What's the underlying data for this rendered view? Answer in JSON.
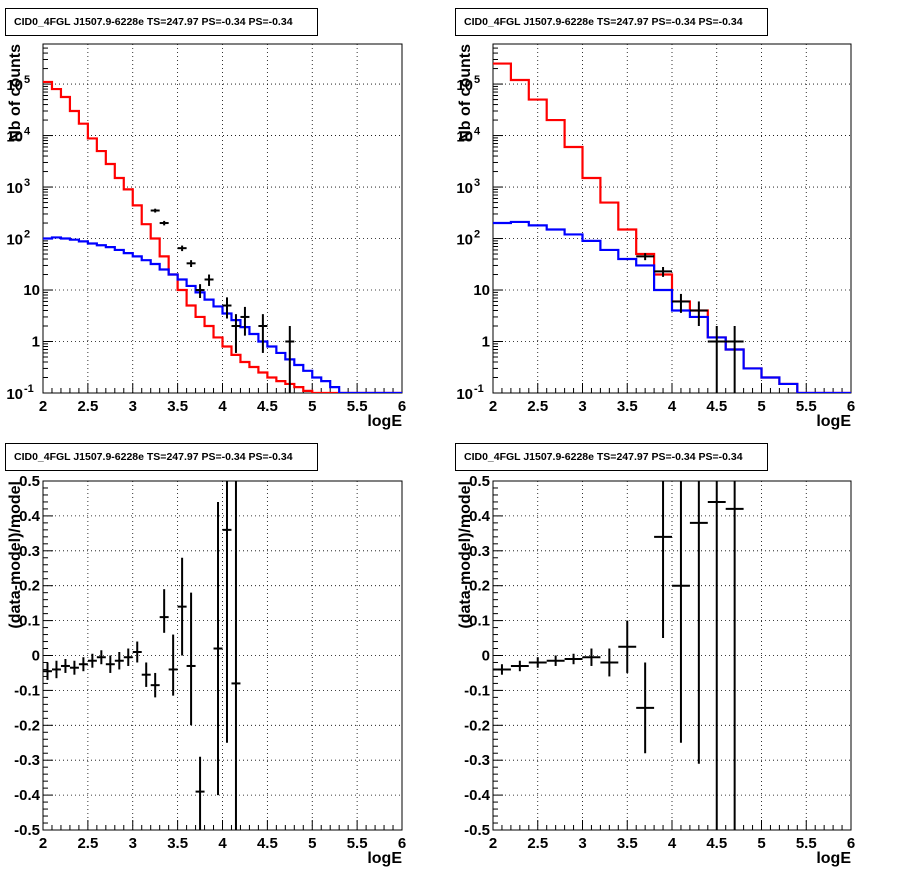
{
  "chart_data": [
    {
      "type": "line",
      "title": "CID0_4FGL J1507.9-6228e TS=247.97 PS=-0.34 PS=-0.34",
      "xlabel": "logE",
      "ylabel": "Nb of counts",
      "yscale": "log",
      "xlim": [
        2,
        6
      ],
      "ylim": [
        0.1,
        600000
      ],
      "grid": true,
      "x_ticks": [
        "2",
        "2.5",
        "3",
        "3.5",
        "4",
        "4.5",
        "5",
        "5.5",
        "6"
      ],
      "y_ticks": [
        "10^-1",
        "1",
        "10",
        "10^2",
        "10^3",
        "10^4",
        "10^5"
      ],
      "bin_edges": [
        2.0,
        2.1,
        2.2,
        2.3,
        2.4,
        2.5,
        2.6,
        2.7,
        2.8,
        2.9,
        3.0,
        3.1,
        3.2,
        3.3,
        3.4,
        3.5,
        3.6,
        3.7,
        3.8,
        3.9,
        4.0,
        4.1,
        4.2,
        4.3,
        4.4,
        4.5,
        4.6,
        4.7,
        4.8,
        4.9,
        5.0,
        5.1,
        5.2,
        5.3,
        5.4,
        5.5,
        5.6,
        5.7,
        5.8,
        5.9,
        6.0
      ],
      "series": [
        {
          "color": "#ff0000",
          "values": [
            110000,
            80000,
            56000,
            30000,
            17000,
            8800,
            5000,
            2800,
            1500,
            900,
            440,
            190,
            100,
            45,
            20,
            10,
            5,
            3,
            2,
            1.2,
            0.8,
            0.55,
            0.4,
            0.32,
            0.25,
            0.2,
            0.17,
            0.15,
            0.13,
            0.11,
            0.1,
            0.1,
            0.1,
            0.1,
            0.1,
            0.1,
            0.1,
            0.1,
            0.1,
            0.1
          ]
        },
        {
          "color": "#0000ff",
          "values": [
            100,
            105,
            100,
            95,
            88,
            80,
            74,
            68,
            60,
            52,
            45,
            38,
            32,
            25,
            20,
            16,
            12,
            9,
            6.5,
            4.8,
            3.5,
            2.6,
            1.9,
            1.4,
            1.0,
            0.8,
            0.6,
            0.45,
            0.35,
            0.27,
            0.2,
            0.17,
            0.13,
            0.1,
            0.1,
            0.1,
            0.1,
            0.1,
            0.1,
            0.1
          ]
        }
      ],
      "data_points": [
        {
          "x": 3.25,
          "y": 350,
          "ylo": 320,
          "yhi": 380
        },
        {
          "x": 3.35,
          "y": 200,
          "ylo": 180,
          "yhi": 220
        },
        {
          "x": 3.55,
          "y": 65,
          "ylo": 57,
          "yhi": 73
        },
        {
          "x": 3.65,
          "y": 33,
          "ylo": 28,
          "yhi": 38
        },
        {
          "x": 3.75,
          "y": 10,
          "ylo": 7,
          "yhi": 13
        },
        {
          "x": 3.85,
          "y": 16,
          "ylo": 12,
          "yhi": 20
        },
        {
          "x": 4.05,
          "y": 5,
          "ylo": 2.8,
          "yhi": 7.2
        },
        {
          "x": 4.15,
          "y": 2,
          "ylo": 0.6,
          "yhi": 3.4
        },
        {
          "x": 4.25,
          "y": 3,
          "ylo": 1.3,
          "yhi": 4.7
        },
        {
          "x": 4.45,
          "y": 2,
          "ylo": 0.6,
          "yhi": 3.4
        },
        {
          "x": 4.75,
          "y": 1,
          "ylo": 0.1,
          "yhi": 2.0
        }
      ]
    },
    {
      "type": "line",
      "title": "CID0_4FGL J1507.9-6228e TS=247.97 PS=-0.34 PS=-0.34",
      "xlabel": "logE",
      "ylabel": "Nb of counts",
      "yscale": "log",
      "xlim": [
        2,
        6
      ],
      "ylim": [
        0.1,
        600000
      ],
      "grid": true,
      "x_ticks": [
        "2",
        "2.5",
        "3",
        "3.5",
        "4",
        "4.5",
        "5",
        "5.5",
        "6"
      ],
      "y_ticks": [
        "10^-1",
        "1",
        "10",
        "10^2",
        "10^3",
        "10^4",
        "10^5"
      ],
      "bin_edges": [
        2.0,
        2.2,
        2.4,
        2.6,
        2.8,
        3.0,
        3.2,
        3.4,
        3.6,
        3.8,
        4.0,
        4.2,
        4.4,
        4.6,
        4.8,
        5.0,
        5.2,
        5.4,
        5.6,
        5.8,
        6.0
      ],
      "series": [
        {
          "color": "#ff0000",
          "values": [
            250000,
            120000,
            50000,
            20000,
            6000,
            1500,
            500,
            150,
            50,
            20,
            6,
            4,
            1.2,
            0.7,
            0.3,
            0.2,
            0.15,
            0.1,
            0.1,
            0.1
          ]
        },
        {
          "color": "#0000ff",
          "values": [
            200,
            210,
            180,
            150,
            120,
            90,
            60,
            40,
            30,
            10,
            4,
            3,
            1.2,
            0.7,
            0.3,
            0.2,
            0.15,
            0.1,
            0.1,
            0.1
          ]
        }
      ],
      "data_points": [
        {
          "x": 3.7,
          "y": 45,
          "ylo": 38,
          "yhi": 52
        },
        {
          "x": 3.9,
          "y": 23,
          "ylo": 18,
          "yhi": 28
        },
        {
          "x": 4.1,
          "y": 6,
          "ylo": 3.6,
          "yhi": 8.4
        },
        {
          "x": 4.3,
          "y": 4,
          "ylo": 2,
          "yhi": 6
        },
        {
          "x": 4.5,
          "y": 1,
          "ylo": 0.1,
          "yhi": 2
        },
        {
          "x": 4.7,
          "y": 1,
          "ylo": 0.1,
          "yhi": 2
        }
      ]
    },
    {
      "type": "scatter",
      "title": "CID0_4FGL J1507.9-6228e TS=247.97 PS=-0.34 PS=-0.34",
      "xlabel": "logE",
      "ylabel": "(data-model)/model",
      "xlim": [
        2,
        6
      ],
      "ylim": [
        -0.5,
        0.5
      ],
      "grid": true,
      "x_ticks": [
        "2",
        "2.5",
        "3",
        "3.5",
        "4",
        "4.5",
        "5",
        "5.5",
        "6"
      ],
      "y_ticks": [
        "-0.5",
        "-0.4",
        "-0.3",
        "-0.2",
        "-0.1",
        "0",
        "0.1",
        "0.2",
        "0.3",
        "0.4",
        "0.5"
      ],
      "bin_half_width": 0.05,
      "points": [
        {
          "x": 2.05,
          "y": -0.045,
          "ylo": -0.07,
          "yhi": -0.02
        },
        {
          "x": 2.15,
          "y": -0.04,
          "ylo": -0.065,
          "yhi": -0.015
        },
        {
          "x": 2.25,
          "y": -0.03,
          "ylo": -0.05,
          "yhi": -0.01
        },
        {
          "x": 2.35,
          "y": -0.035,
          "ylo": -0.055,
          "yhi": -0.015
        },
        {
          "x": 2.45,
          "y": -0.025,
          "ylo": -0.045,
          "yhi": -0.005
        },
        {
          "x": 2.55,
          "y": -0.015,
          "ylo": -0.035,
          "yhi": 0.005
        },
        {
          "x": 2.65,
          "y": -0.005,
          "ylo": -0.025,
          "yhi": 0.015
        },
        {
          "x": 2.75,
          "y": -0.025,
          "ylo": -0.05,
          "yhi": 0.0
        },
        {
          "x": 2.85,
          "y": -0.015,
          "ylo": -0.04,
          "yhi": 0.01
        },
        {
          "x": 2.95,
          "y": -0.005,
          "ylo": -0.03,
          "yhi": 0.02
        },
        {
          "x": 3.05,
          "y": 0.01,
          "ylo": -0.02,
          "yhi": 0.04
        },
        {
          "x": 3.15,
          "y": -0.055,
          "ylo": -0.09,
          "yhi": -0.02
        },
        {
          "x": 3.25,
          "y": -0.085,
          "ylo": -0.12,
          "yhi": -0.05
        },
        {
          "x": 3.35,
          "y": 0.11,
          "ylo": 0.065,
          "yhi": 0.19
        },
        {
          "x": 3.45,
          "y": -0.04,
          "ylo": -0.115,
          "yhi": 0.06
        },
        {
          "x": 3.55,
          "y": 0.14,
          "ylo": 0.0,
          "yhi": 0.28
        },
        {
          "x": 3.65,
          "y": -0.03,
          "ylo": -0.2,
          "yhi": 0.18
        },
        {
          "x": 3.75,
          "y": -0.39,
          "ylo": -0.5,
          "yhi": -0.29
        },
        {
          "x": 3.95,
          "y": 0.02,
          "ylo": -0.4,
          "yhi": 0.44
        },
        {
          "x": 4.05,
          "y": 0.36,
          "ylo": -0.25,
          "yhi": 0.5
        },
        {
          "x": 4.15,
          "y": -0.08,
          "ylo": -0.5,
          "yhi": 0.5
        }
      ]
    },
    {
      "type": "scatter",
      "title": "CID0_4FGL J1507.9-6228e TS=247.97 PS=-0.34 PS=-0.34",
      "xlabel": "logE",
      "ylabel": "(data-model)/model",
      "xlim": [
        2,
        6
      ],
      "ylim": [
        -0.5,
        0.5
      ],
      "grid": true,
      "x_ticks": [
        "2",
        "2.5",
        "3",
        "3.5",
        "4",
        "4.5",
        "5",
        "5.5",
        "6"
      ],
      "y_ticks": [
        "-0.5",
        "-0.4",
        "-0.3",
        "-0.2",
        "-0.1",
        "0",
        "0.1",
        "0.2",
        "0.3",
        "0.4",
        "0.5"
      ],
      "bin_half_width": 0.1,
      "points": [
        {
          "x": 2.1,
          "y": -0.04,
          "ylo": -0.055,
          "yhi": -0.025
        },
        {
          "x": 2.3,
          "y": -0.03,
          "ylo": -0.045,
          "yhi": -0.015
        },
        {
          "x": 2.5,
          "y": -0.02,
          "ylo": -0.035,
          "yhi": -0.005
        },
        {
          "x": 2.7,
          "y": -0.015,
          "ylo": -0.03,
          "yhi": 0.0
        },
        {
          "x": 2.9,
          "y": -0.01,
          "ylo": -0.025,
          "yhi": 0.005
        },
        {
          "x": 3.1,
          "y": -0.005,
          "ylo": -0.03,
          "yhi": 0.02
        },
        {
          "x": 3.3,
          "y": -0.02,
          "ylo": -0.06,
          "yhi": 0.02
        },
        {
          "x": 3.5,
          "y": 0.025,
          "ylo": -0.05,
          "yhi": 0.1
        },
        {
          "x": 3.7,
          "y": -0.15,
          "ylo": -0.28,
          "yhi": -0.02
        },
        {
          "x": 3.9,
          "y": 0.34,
          "ylo": 0.05,
          "yhi": 0.5
        },
        {
          "x": 4.1,
          "y": 0.2,
          "ylo": -0.25,
          "yhi": 0.5
        },
        {
          "x": 4.3,
          "y": 0.38,
          "ylo": -0.31,
          "yhi": 0.5
        },
        {
          "x": 4.5,
          "y": 0.44,
          "ylo": -0.5,
          "yhi": 0.5
        },
        {
          "x": 4.7,
          "y": 0.42,
          "ylo": -0.5,
          "yhi": 0.5
        }
      ]
    }
  ]
}
